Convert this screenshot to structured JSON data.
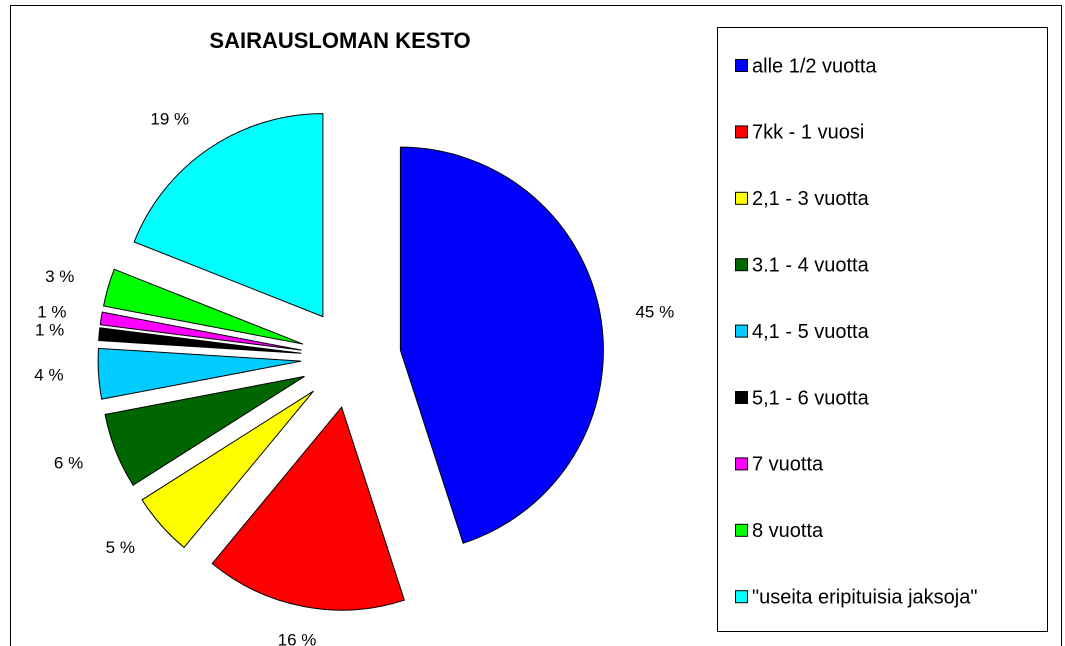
{
  "chart_data": {
    "type": "pie",
    "title": "SAIRAUSLOMAN KESTO",
    "categories": [
      "alle 1/2 vuotta",
      "7kk - 1 vuosi",
      "2,1 - 3 vuotta",
      "3.1 - 4 vuotta",
      "4,1 - 5 vuotta",
      "5,1 - 6 vuotta",
      "7 vuotta",
      "8 vuotta",
      "\"useita eripituisia jaksoja\""
    ],
    "values": [
      45,
      16,
      5,
      6,
      4,
      1,
      1,
      3,
      19
    ],
    "value_labels": [
      "45 %",
      "16 %",
      "5 %",
      "6 %",
      "4 %",
      "1 %",
      "1 %",
      "3 %",
      "19 %"
    ],
    "colors": [
      "#0000ff",
      "#ff0000",
      "#ffff00",
      "#006600",
      "#00ccff",
      "#000000",
      "#ff00ff",
      "#00ff00",
      "#00ffff"
    ],
    "legend": "right"
  }
}
